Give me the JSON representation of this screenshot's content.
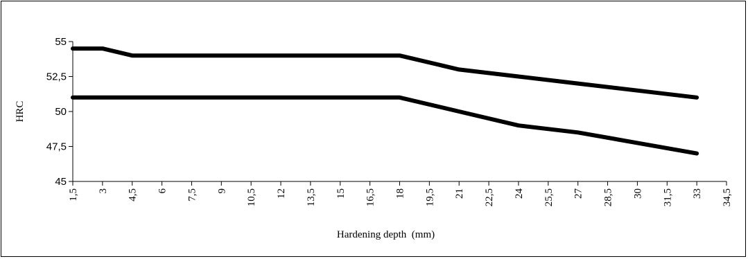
{
  "chart_data": {
    "type": "line",
    "title": "",
    "xlabel": "Hardening depth  (mm)",
    "ylabel": "HRC",
    "xlim": [
      1.5,
      34.5
    ],
    "ylim": [
      45,
      55
    ],
    "x_ticks": [
      "1,5",
      "3",
      "4,5",
      "6",
      "7,5",
      "9",
      "10,5",
      "12",
      "13,5",
      "15",
      "16,5",
      "18",
      "19,5",
      "21",
      "22,5",
      "24",
      "25,5",
      "27",
      "28,5",
      "30",
      "31,5",
      "33",
      "34,5"
    ],
    "y_ticks": [
      "45",
      "47,5",
      "50",
      "52,5",
      "55"
    ],
    "grid": false,
    "legend": "none",
    "line_color": "#000000",
    "series": [
      {
        "x": [
          1.5,
          3,
          4.5,
          6,
          18,
          21,
          24,
          27,
          30,
          33
        ],
        "y": [
          54.5,
          54.5,
          54,
          54,
          54,
          53,
          52.5,
          52,
          51.5,
          51
        ]
      },
      {
        "x": [
          1.5,
          18,
          21,
          24,
          27,
          30,
          33
        ],
        "y": [
          51,
          51,
          50,
          49,
          48.5,
          47.75,
          47
        ]
      }
    ]
  }
}
